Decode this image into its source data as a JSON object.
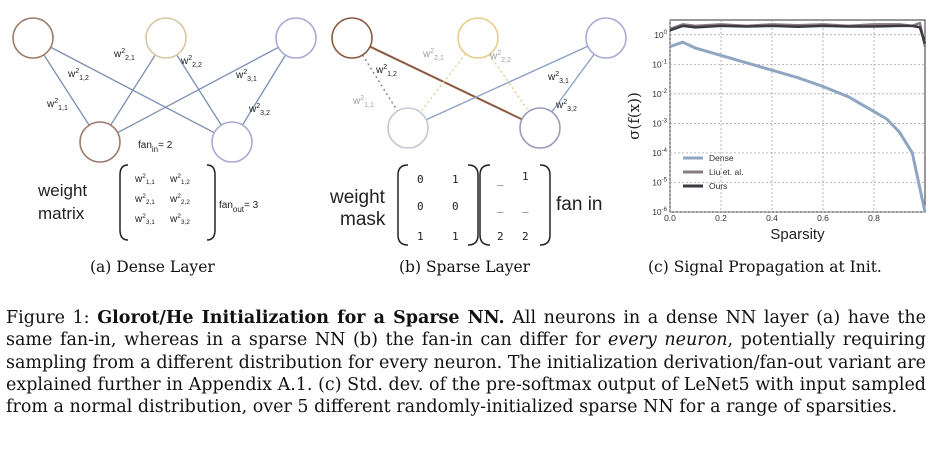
{
  "panel_a": {
    "caption": "(a) Dense Layer",
    "fan_in_label": "fan",
    "fan_in_sub": "in",
    "fan_in_value": "= 2",
    "fan_out_label": "fan",
    "fan_out_sub": "out",
    "fan_out_value": "= 3",
    "weight_label_1": "weight",
    "weight_label_2": "matrix",
    "edge_labels": [
      "w",
      "w",
      "w",
      "w",
      "w",
      "w"
    ]
  },
  "panel_b": {
    "caption": "(b) Sparse Layer",
    "mask_label_1": "weight",
    "mask_label_2": "mask",
    "mask": [
      [
        "0",
        "1"
      ],
      [
        "0",
        "0"
      ],
      [
        "1",
        "1"
      ]
    ],
    "fanin_matrix": [
      [
        "_",
        "1"
      ],
      [
        "_",
        "_"
      ],
      [
        "2",
        "2"
      ]
    ],
    "fan_in_text": "fan in"
  },
  "panel_c": {
    "caption": "(c) Signal Propagation at Init.",
    "colors": {
      "dense": "#8fa6c2",
      "liu": "#8a7a82",
      "ours": "#3a3a40"
    }
  },
  "chart_data": {
    "type": "line",
    "xlabel": "Sparsity",
    "ylabel": "σ(f(x))",
    "xlim": [
      0.0,
      1.0
    ],
    "ylim": [
      -6,
      0.5
    ],
    "yscale": "log",
    "xticks": [
      "0.0",
      "0.2",
      "0.4",
      "0.6",
      "0.8"
    ],
    "yticks": [
      "10",
      "10",
      "10",
      "10",
      "10",
      "10",
      "10"
    ],
    "ytick_exps": [
      "0",
      "-1",
      "-2",
      "-3",
      "-4",
      "-5",
      "-6"
    ],
    "grid": true,
    "legend_position": "bottom-left",
    "series": [
      {
        "name": "Dense",
        "x": [
          0.0,
          0.05,
          0.1,
          0.2,
          0.3,
          0.4,
          0.5,
          0.6,
          0.7,
          0.8,
          0.85,
          0.9,
          0.95,
          0.98,
          1.0
        ],
        "y": [
          -0.4,
          -0.25,
          -0.45,
          -0.7,
          -0.95,
          -1.2,
          -1.45,
          -1.75,
          -2.1,
          -2.6,
          -2.85,
          -3.3,
          -4.0,
          -5.2,
          -6.0
        ]
      },
      {
        "name": "Liu et. al.",
        "x": [
          0.0,
          0.05,
          0.1,
          0.2,
          0.3,
          0.4,
          0.5,
          0.6,
          0.7,
          0.8,
          0.9,
          0.95,
          0.98,
          1.0
        ],
        "y": [
          0.2,
          0.35,
          0.3,
          0.35,
          0.3,
          0.35,
          0.32,
          0.35,
          0.3,
          0.35,
          0.35,
          0.3,
          0.4,
          -0.4
        ]
      },
      {
        "name": "Ours",
        "x": [
          0.0,
          0.05,
          0.1,
          0.2,
          0.3,
          0.4,
          0.5,
          0.6,
          0.7,
          0.8,
          0.9,
          0.95,
          0.98,
          1.0
        ],
        "y": [
          0.15,
          0.3,
          0.25,
          0.3,
          0.28,
          0.3,
          0.27,
          0.3,
          0.28,
          0.28,
          0.3,
          0.3,
          0.25,
          -0.3
        ]
      }
    ]
  },
  "caption": {
    "prefix": "Figure 1: ",
    "title": "Glorot/He Initialization for a Sparse NN.",
    "text1": " All neurons in a dense NN layer (a) have the same fan-in, whereas in a sparse NN (b) the fan-in can differ for ",
    "emph": "every neuron",
    "text2": ", potentially requiring sampling from a different distribution for every neuron. The initialization derivation/fan-out variant are explained further in Appendix A.1.  (c) Std. dev. of the pre-softmax output of LeNet5 with input sampled from a normal distribution, over 5 different randomly-initialized sparse NN for a range of sparsities."
  }
}
